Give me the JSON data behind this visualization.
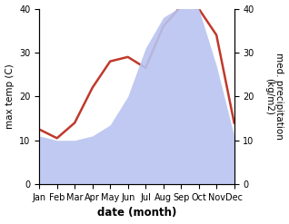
{
  "months": [
    "Jan",
    "Feb",
    "Mar",
    "Apr",
    "May",
    "Jun",
    "Jul",
    "Aug",
    "Sep",
    "Oct",
    "Nov",
    "Dec"
  ],
  "temp": [
    12.5,
    10.5,
    14.0,
    22.0,
    28.0,
    29.0,
    26.5,
    36.0,
    40.5,
    40.0,
    34.0,
    14.0
  ],
  "precip": [
    11.0,
    10.0,
    10.0,
    11.0,
    13.5,
    20.0,
    31.0,
    38.0,
    40.5,
    40.0,
    27.0,
    11.0
  ],
  "temp_color": "#c0392b",
  "precip_color": "#b8c4f0",
  "ylim": [
    0,
    40
  ],
  "yticks": [
    0,
    10,
    20,
    30,
    40
  ],
  "ylabel_left": "max temp (C)",
  "ylabel_right": "med. precipitation\n(kg/m2)",
  "xlabel": "date (month)",
  "label_fontsize": 7.5,
  "tick_fontsize": 7.0,
  "xlabel_fontsize": 8.5,
  "line_width": 1.8
}
